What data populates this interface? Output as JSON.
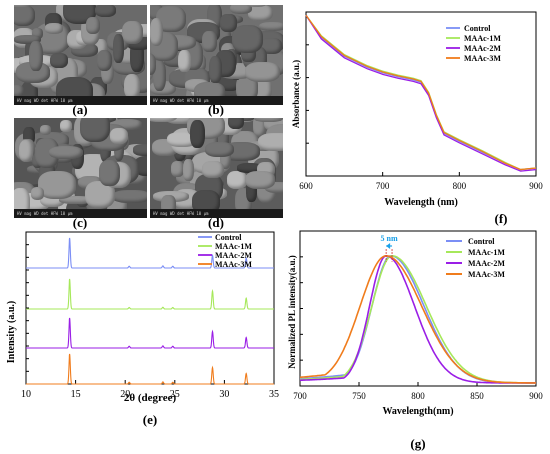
{
  "panel_labels": {
    "a": "(a)",
    "b": "(b)",
    "c": "(c)",
    "d": "(d)",
    "e": "(e)",
    "f": "(f)",
    "g": "(g)"
  },
  "sem_bar_text": "HV  mag  WD  det  HFW  10 μm",
  "series_names": [
    "Control",
    "MAAc-1M",
    "MAAc-2M",
    "MAAc-3M"
  ],
  "colors": {
    "Control": "#7b8ef5",
    "MAAc-1M": "#a6e85a",
    "MAAc-2M": "#9a1ee6",
    "MAAc-3M": "#f07c1c",
    "arrow": "#1aa0e8"
  },
  "chart_data": [
    {
      "id": "f",
      "type": "line",
      "xlabel": "Wavelength (nm)",
      "ylabel": "Absorbance (a.u.)",
      "xlim": [
        600,
        900
      ],
      "xticks": [
        600,
        700,
        800,
        900
      ],
      "legend": "top-right",
      "series": [
        {
          "name": "Control",
          "x": [
            600,
            620,
            650,
            680,
            700,
            720,
            740,
            750,
            760,
            770,
            780,
            800,
            830,
            860,
            880,
            900
          ],
          "y": [
            1.0,
            0.86,
            0.74,
            0.67,
            0.635,
            0.61,
            0.59,
            0.575,
            0.5,
            0.36,
            0.25,
            0.2,
            0.13,
            0.06,
            0.02,
            0.03
          ]
        },
        {
          "name": "MAAc-1M",
          "x": [
            600,
            620,
            650,
            680,
            700,
            720,
            740,
            750,
            760,
            770,
            780,
            800,
            830,
            860,
            880,
            900
          ],
          "y": [
            1.0,
            0.87,
            0.75,
            0.68,
            0.645,
            0.62,
            0.6,
            0.585,
            0.51,
            0.37,
            0.26,
            0.21,
            0.14,
            0.065,
            0.02,
            0.03
          ]
        },
        {
          "name": "MAAc-2M",
          "x": [
            600,
            620,
            650,
            680,
            700,
            720,
            740,
            750,
            760,
            770,
            780,
            800,
            830,
            860,
            880,
            900
          ],
          "y": [
            1.0,
            0.85,
            0.73,
            0.66,
            0.625,
            0.6,
            0.58,
            0.565,
            0.49,
            0.35,
            0.24,
            0.19,
            0.12,
            0.05,
            0.01,
            0.02
          ]
        },
        {
          "name": "MAAc-3M",
          "x": [
            600,
            620,
            650,
            680,
            700,
            720,
            740,
            750,
            760,
            770,
            780,
            800,
            830,
            860,
            880,
            900
          ],
          "y": [
            1.0,
            0.865,
            0.745,
            0.675,
            0.64,
            0.615,
            0.595,
            0.58,
            0.505,
            0.365,
            0.255,
            0.205,
            0.135,
            0.06,
            0.02,
            0.03
          ]
        }
      ]
    },
    {
      "id": "e",
      "type": "line",
      "xlabel": "2θ (degree)",
      "ylabel": "Intensity (a.u.)",
      "xlim": [
        10,
        35
      ],
      "xticks": [
        10,
        15,
        20,
        25,
        30,
        35
      ],
      "legend": "top-right",
      "peaks": [
        {
          "pos": 14.4,
          "height": 1.0,
          "width": 0.07
        },
        {
          "pos": 20.4,
          "height": 0.06,
          "width": 0.07
        },
        {
          "pos": 23.8,
          "height": 0.07,
          "width": 0.07
        },
        {
          "pos": 24.8,
          "height": 0.06,
          "width": 0.07
        },
        {
          "pos": 28.8,
          "height": 0.55,
          "width": 0.07
        },
        {
          "pos": 32.2,
          "height": 0.35,
          "width": 0.07
        }
      ],
      "series": [
        {
          "name": "Control",
          "scale": [
            1.0,
            0.06,
            0.07,
            0.06,
            0.42,
            0.33
          ]
        },
        {
          "name": "MAAc-1M",
          "scale": [
            1.0,
            0.05,
            0.06,
            0.05,
            0.6,
            0.36
          ]
        },
        {
          "name": "MAAc-2M",
          "scale": [
            1.0,
            0.06,
            0.07,
            0.06,
            0.55,
            0.35
          ]
        },
        {
          "name": "MAAc-3M",
          "scale": [
            1.0,
            0.06,
            0.07,
            0.06,
            0.55,
            0.35
          ]
        }
      ]
    },
    {
      "id": "g",
      "type": "line",
      "xlabel": "Wavelength(nm)",
      "ylabel": "Normalized PL intensity(a.u.)",
      "xlim": [
        700,
        900
      ],
      "xticks": [
        700,
        750,
        800,
        850,
        900
      ],
      "legend": "top-right",
      "annotation": "5 nm",
      "series": [
        {
          "name": "Control",
          "peak": 777,
          "sigL": 16,
          "sigR": 28,
          "base": 0.12
        },
        {
          "name": "MAAc-1M",
          "peak": 778,
          "sigL": 17,
          "sigR": 29,
          "base": 0.1
        },
        {
          "name": "MAAc-2M",
          "peak": 773,
          "sigL": 14,
          "sigR": 24,
          "base": 0.07
        },
        {
          "name": "MAAc-3M",
          "peak": 773,
          "sigL": 22,
          "sigR": 30,
          "base": 0.15
        }
      ]
    }
  ]
}
